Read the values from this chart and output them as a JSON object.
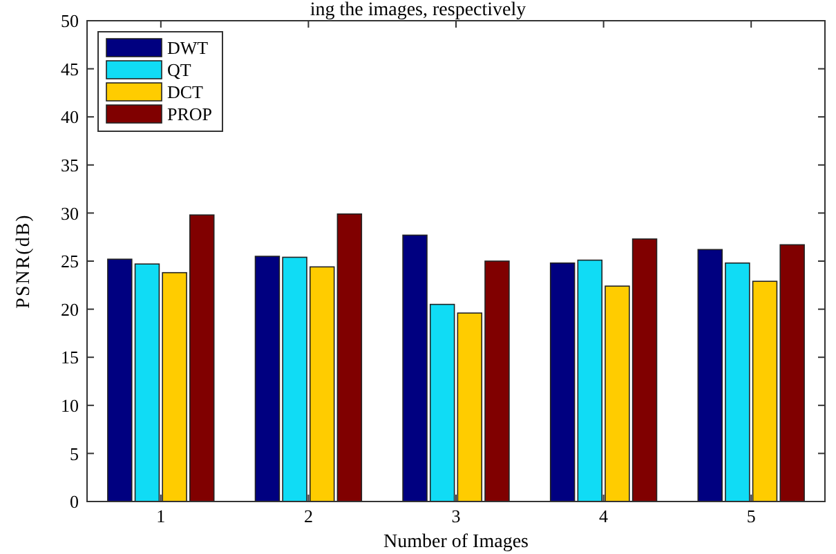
{
  "chart_data": {
    "type": "bar",
    "xlabel": "Number of Images",
    "ylabel": "PSNR(dB)",
    "annotations": [
      "ing the images, respectively"
    ],
    "categories": [
      "1",
      "2",
      "3",
      "4",
      "5"
    ],
    "series": [
      {
        "name": "DWT",
        "color": "#000080",
        "values": [
          25.2,
          25.5,
          27.7,
          24.8,
          26.2
        ]
      },
      {
        "name": "QT",
        "color": "#10dcf5",
        "values": [
          24.7,
          25.4,
          20.5,
          25.1,
          24.8
        ]
      },
      {
        "name": "DCT",
        "color": "#ffcc00",
        "values": [
          23.8,
          24.4,
          19.6,
          22.4,
          22.9
        ]
      },
      {
        "name": "PROP",
        "color": "#800000",
        "values": [
          29.8,
          29.9,
          25.0,
          27.3,
          26.7
        ]
      }
    ],
    "ylim": [
      0,
      50
    ],
    "yticks": [
      0,
      5,
      10,
      15,
      20,
      25,
      30,
      35,
      40,
      45,
      50
    ],
    "grid": false,
    "legend": "top left"
  }
}
